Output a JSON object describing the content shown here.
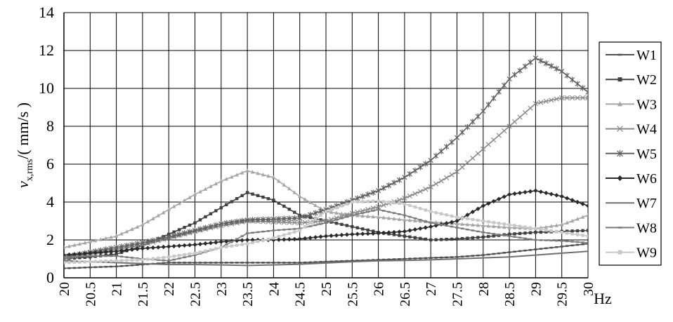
{
  "chart_data": {
    "type": "line",
    "title": "",
    "xlabel": "Hz",
    "ylabel_parts": {
      "symbol": "v",
      "subscript": "x,rms",
      "slash": "/",
      "unit": "( mm/s )"
    },
    "xlim": [
      20,
      30
    ],
    "ylim": [
      0,
      14
    ],
    "x_ticks": [
      "20",
      "20.5",
      "21",
      "21.5",
      "22",
      "22.5",
      "23",
      "23.5",
      "24",
      "24.5",
      "25",
      "25.5",
      "26",
      "26.5",
      "27",
      "27.5",
      "28",
      "28.5",
      "29",
      "29.5",
      "30"
    ],
    "y_ticks": [
      "0",
      "2",
      "4",
      "6",
      "8",
      "10",
      "12",
      "14"
    ],
    "grid": true,
    "legend_position": "right",
    "x": [
      20,
      20.5,
      21,
      21.5,
      22,
      22.5,
      23,
      23.5,
      24,
      24.5,
      25,
      25.5,
      26,
      26.5,
      27,
      27.5,
      28,
      28.5,
      29,
      29.5,
      30
    ],
    "series": [
      {
        "name": "W1",
        "marker": "dash",
        "color": "#505050",
        "values": [
          0.5,
          0.55,
          0.6,
          0.7,
          0.8,
          0.8,
          0.8,
          0.8,
          0.8,
          0.8,
          0.85,
          0.9,
          0.95,
          1.0,
          1.05,
          1.1,
          1.2,
          1.35,
          1.5,
          1.65,
          1.8
        ]
      },
      {
        "name": "W2",
        "marker": "square",
        "color": "#404040",
        "values": [
          1.0,
          1.1,
          1.25,
          1.7,
          2.3,
          2.9,
          3.7,
          4.5,
          4.1,
          3.3,
          3.0,
          2.7,
          2.4,
          2.2,
          2.0,
          2.05,
          2.15,
          2.3,
          2.4,
          2.45,
          2.5
        ]
      },
      {
        "name": "W3",
        "marker": "triangle",
        "color": "#a6a6a6",
        "values": [
          1.6,
          1.9,
          2.2,
          2.8,
          3.6,
          4.4,
          5.1,
          5.65,
          5.3,
          4.3,
          3.5,
          3.3,
          3.2,
          3.05,
          2.95,
          2.85,
          2.75,
          2.65,
          2.6,
          2.8,
          3.3
        ]
      },
      {
        "name": "W4",
        "marker": "x",
        "color": "#8a8a8a",
        "values": [
          1.0,
          1.3,
          1.5,
          1.75,
          2.1,
          2.45,
          2.75,
          3.0,
          2.95,
          2.9,
          3.0,
          3.4,
          3.75,
          4.2,
          4.8,
          5.6,
          6.8,
          8.0,
          9.2,
          9.5,
          9.5
        ]
      },
      {
        "name": "W5",
        "marker": "star",
        "color": "#606060",
        "values": [
          1.1,
          1.35,
          1.6,
          1.85,
          2.15,
          2.5,
          2.85,
          3.05,
          3.1,
          3.15,
          3.6,
          4.1,
          4.6,
          5.3,
          6.2,
          7.4,
          8.8,
          10.5,
          11.6,
          10.9,
          9.8
        ]
      },
      {
        "name": "W6",
        "marker": "diamond",
        "color": "#2a2a2a",
        "values": [
          1.2,
          1.3,
          1.4,
          1.55,
          1.65,
          1.75,
          1.9,
          2.0,
          2.0,
          2.05,
          2.2,
          2.3,
          2.35,
          2.45,
          2.7,
          3.0,
          3.8,
          4.4,
          4.6,
          4.3,
          3.8
        ]
      },
      {
        "name": "W7",
        "marker": "none",
        "color": "#707070",
        "values": [
          0.9,
          0.85,
          0.8,
          0.75,
          0.7,
          0.7,
          0.68,
          0.65,
          0.68,
          0.72,
          0.78,
          0.85,
          0.9,
          0.92,
          0.95,
          1.0,
          1.05,
          1.1,
          1.2,
          1.3,
          1.4
        ]
      },
      {
        "name": "W8",
        "marker": "dash",
        "color": "#7a7a7a",
        "values": [
          1.1,
          1.15,
          1.15,
          1.0,
          0.9,
          1.2,
          1.6,
          2.35,
          2.5,
          2.6,
          2.9,
          3.3,
          3.6,
          3.3,
          2.9,
          2.65,
          2.4,
          2.2,
          2.0,
          1.95,
          1.85
        ]
      },
      {
        "name": "W9",
        "marker": "square",
        "color": "#c8c8c8",
        "values": [
          0.8,
          0.85,
          0.9,
          0.95,
          1.1,
          1.3,
          1.6,
          1.8,
          2.1,
          2.5,
          3.5,
          4.0,
          4.05,
          3.9,
          3.5,
          3.2,
          3.0,
          2.8,
          2.6,
          2.4,
          2.2
        ]
      }
    ]
  }
}
